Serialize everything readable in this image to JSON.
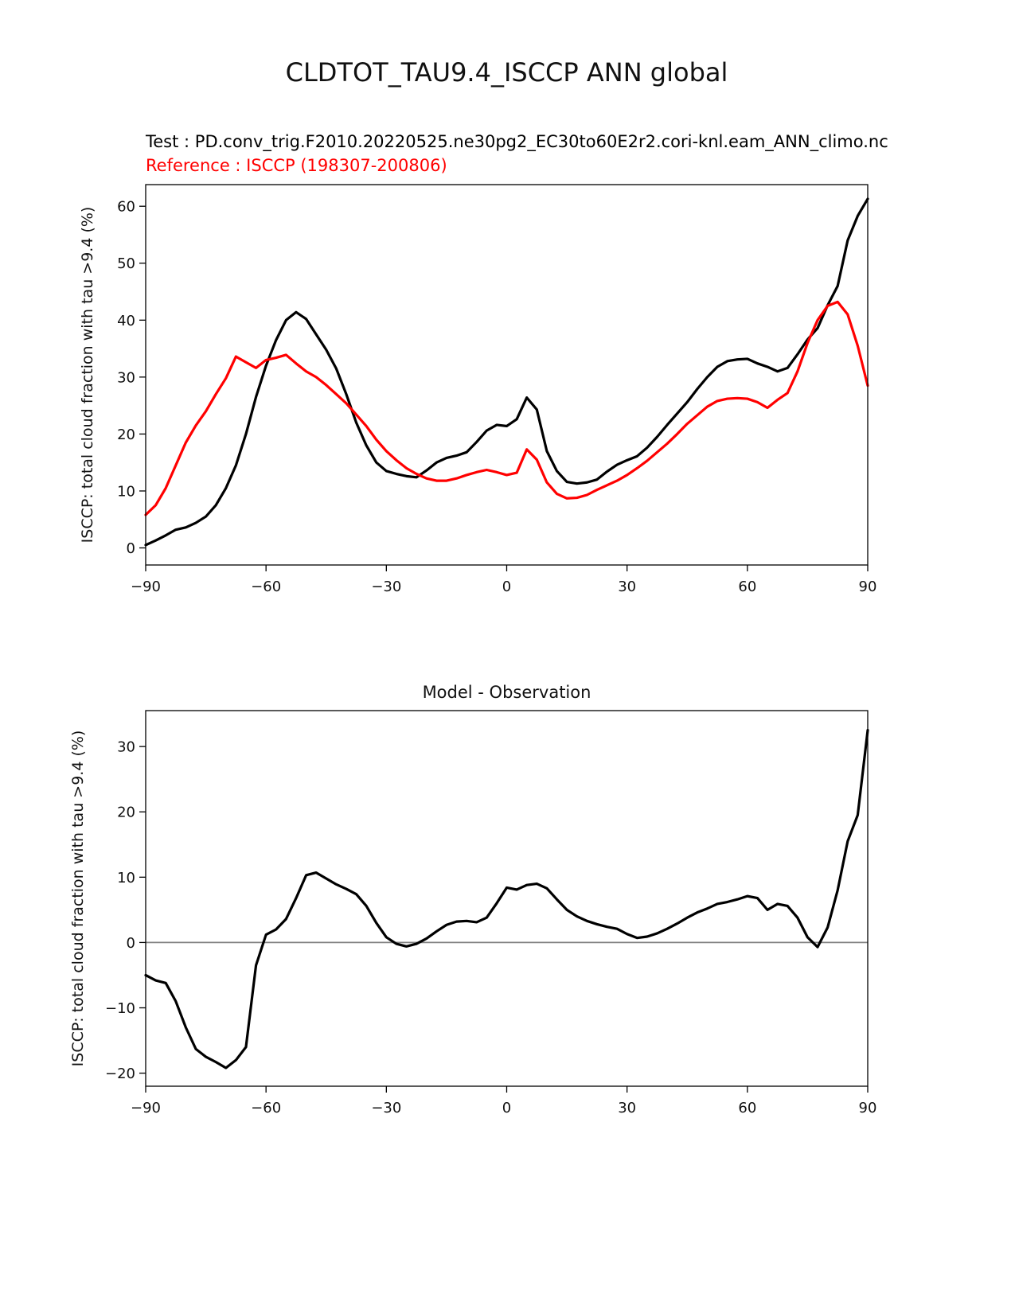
{
  "colors": {
    "test_line": "#000000",
    "reference_line": "#ff0000",
    "zero_line": "#808080",
    "frame": "#000000",
    "background": "#ffffff"
  },
  "chart_data": [
    {
      "type": "line",
      "title": "CLDTOT_TAU9.4_ISCCP ANN global",
      "test_label": "Test : PD.conv_trig.F2010.20220525.ne30pg2_EC30to60E2r2.cori-knl.eam_ANN_climo.nc",
      "reference_label": "Reference : ISCCP (198307-200806)",
      "xlabel": "",
      "ylabel": "ISCCP: total cloud fraction with tau >9.4 (%)",
      "xlim": [
        -90,
        90
      ],
      "ylim": [
        -3.0,
        63.8
      ],
      "xticks": [
        -90,
        -60,
        -30,
        0,
        30,
        60,
        90
      ],
      "yticks": [
        0,
        10,
        20,
        30,
        40,
        50,
        60
      ],
      "grid": false,
      "legend": "none",
      "x": [
        -90,
        -87.5,
        -85,
        -82.5,
        -80,
        -77.5,
        -75,
        -72.5,
        -70,
        -67.5,
        -65,
        -62.5,
        -60,
        -57.5,
        -55,
        -52.5,
        -50,
        -47.5,
        -45,
        -42.5,
        -40,
        -37.5,
        -35,
        -32.5,
        -30,
        -27.5,
        -25,
        -22.5,
        -20,
        -17.5,
        -15,
        -12.5,
        -10,
        -7.5,
        -5,
        -2.5,
        0,
        2.5,
        5,
        7.5,
        10,
        12.5,
        15,
        17.5,
        20,
        22.5,
        25,
        27.5,
        30,
        32.5,
        35,
        37.5,
        40,
        42.5,
        45,
        47.5,
        50,
        52.5,
        55,
        57.5,
        60,
        62.5,
        65,
        67.5,
        70,
        72.5,
        75,
        77.5,
        80,
        82.5,
        85,
        87.5,
        90
      ],
      "series": [
        {
          "id": "test-model",
          "name": "Test (model)",
          "color": "#000000",
          "line_width": 3.2,
          "values": [
            0.5,
            1.3,
            2.2,
            3.2,
            3.6,
            4.4,
            5.5,
            7.5,
            10.5,
            14.5,
            20.0,
            26.5,
            32.0,
            36.5,
            40.0,
            41.4,
            40.2,
            37.5,
            34.8,
            31.5,
            27.0,
            22.0,
            18.0,
            15.0,
            13.5,
            13.0,
            12.6,
            12.4,
            13.6,
            15.0,
            15.8,
            16.2,
            16.8,
            18.6,
            20.6,
            21.6,
            21.4,
            22.6,
            26.4,
            24.3,
            17.0,
            13.5,
            11.6,
            11.3,
            11.5,
            12.0,
            13.4,
            14.6,
            15.4,
            16.1,
            17.6,
            19.5,
            21.6,
            23.6,
            25.6,
            27.9,
            30.0,
            31.8,
            32.8,
            33.1,
            33.2,
            32.4,
            31.8,
            31.0,
            31.6,
            34.0,
            36.6,
            38.6,
            42.6,
            46.0,
            54.0,
            58.3,
            61.3
          ]
        },
        {
          "id": "reference-isccp",
          "name": "Reference ISCCP (198307-200806)",
          "color": "#ff0000",
          "line_width": 3.2,
          "values": [
            5.8,
            7.5,
            10.5,
            14.5,
            18.5,
            21.5,
            24.0,
            27.0,
            29.8,
            33.6,
            32.6,
            31.6,
            33.0,
            33.4,
            33.9,
            32.4,
            31.0,
            30.0,
            28.6,
            27.0,
            25.4,
            23.4,
            21.4,
            19.0,
            17.0,
            15.4,
            14.0,
            13.0,
            12.2,
            11.8,
            11.8,
            12.2,
            12.8,
            13.3,
            13.7,
            13.3,
            12.8,
            13.2,
            17.3,
            15.5,
            11.5,
            9.5,
            8.7,
            8.8,
            9.3,
            10.2,
            11.0,
            11.8,
            12.8,
            14.0,
            15.3,
            16.8,
            18.3,
            20.0,
            21.8,
            23.3,
            24.8,
            25.8,
            26.2,
            26.3,
            26.2,
            25.6,
            24.6,
            26.0,
            27.2,
            31.0,
            36.0,
            40.0,
            42.5,
            43.2,
            41.0,
            35.5,
            28.5
          ]
        }
      ]
    },
    {
      "type": "line",
      "title": "Model - Observation",
      "xlabel": "",
      "ylabel": "ISCCP: total cloud fraction with tau >9.4 (%)",
      "xlim": [
        -90,
        90
      ],
      "ylim": [
        -22,
        35.5
      ],
      "xticks": [
        -90,
        -60,
        -30,
        0,
        30,
        60,
        90
      ],
      "yticks": [
        -20,
        -10,
        0,
        10,
        20,
        30
      ],
      "grid": false,
      "legend": "none",
      "zero_line": true,
      "zero_line_color": "#808080",
      "x": [
        -90,
        -87.5,
        -85,
        -82.5,
        -80,
        -77.5,
        -75,
        -72.5,
        -70,
        -67.5,
        -65,
        -62.5,
        -60,
        -57.5,
        -55,
        -52.5,
        -50,
        -47.5,
        -45,
        -42.5,
        -40,
        -37.5,
        -35,
        -32.5,
        -30,
        -27.5,
        -25,
        -22.5,
        -20,
        -17.5,
        -15,
        -12.5,
        -10,
        -7.5,
        -5,
        -2.5,
        0,
        2.5,
        5,
        7.5,
        10,
        12.5,
        15,
        17.5,
        20,
        22.5,
        25,
        27.5,
        30,
        32.5,
        35,
        37.5,
        40,
        42.5,
        45,
        47.5,
        50,
        52.5,
        55,
        57.5,
        60,
        62.5,
        65,
        67.5,
        70,
        72.5,
        75,
        77.5,
        80,
        82.5,
        85,
        87.5,
        90
      ],
      "series": [
        {
          "id": "model-minus-observation",
          "name": "Model - Observation",
          "color": "#000000",
          "line_width": 3.2,
          "values": [
            -5.0,
            -5.8,
            -6.2,
            -9.0,
            -13.0,
            -16.3,
            -17.5,
            -18.3,
            -19.2,
            -18.0,
            -16.0,
            -3.5,
            1.2,
            2.0,
            3.6,
            6.8,
            10.3,
            10.7,
            9.8,
            8.9,
            8.2,
            7.4,
            5.6,
            3.0,
            0.8,
            -0.2,
            -0.6,
            -0.2,
            0.6,
            1.7,
            2.7,
            3.2,
            3.3,
            3.1,
            3.8,
            6.0,
            8.4,
            8.1,
            8.8,
            9.0,
            8.3,
            6.6,
            5.0,
            4.0,
            3.3,
            2.8,
            2.4,
            2.1,
            1.3,
            0.7,
            0.9,
            1.4,
            2.1,
            2.9,
            3.8,
            4.6,
            5.2,
            5.9,
            6.2,
            6.6,
            7.1,
            6.8,
            5.0,
            5.9,
            5.6,
            3.8,
            0.8,
            -0.7,
            2.3,
            8.0,
            15.5,
            19.5,
            32.5
          ]
        }
      ]
    }
  ]
}
